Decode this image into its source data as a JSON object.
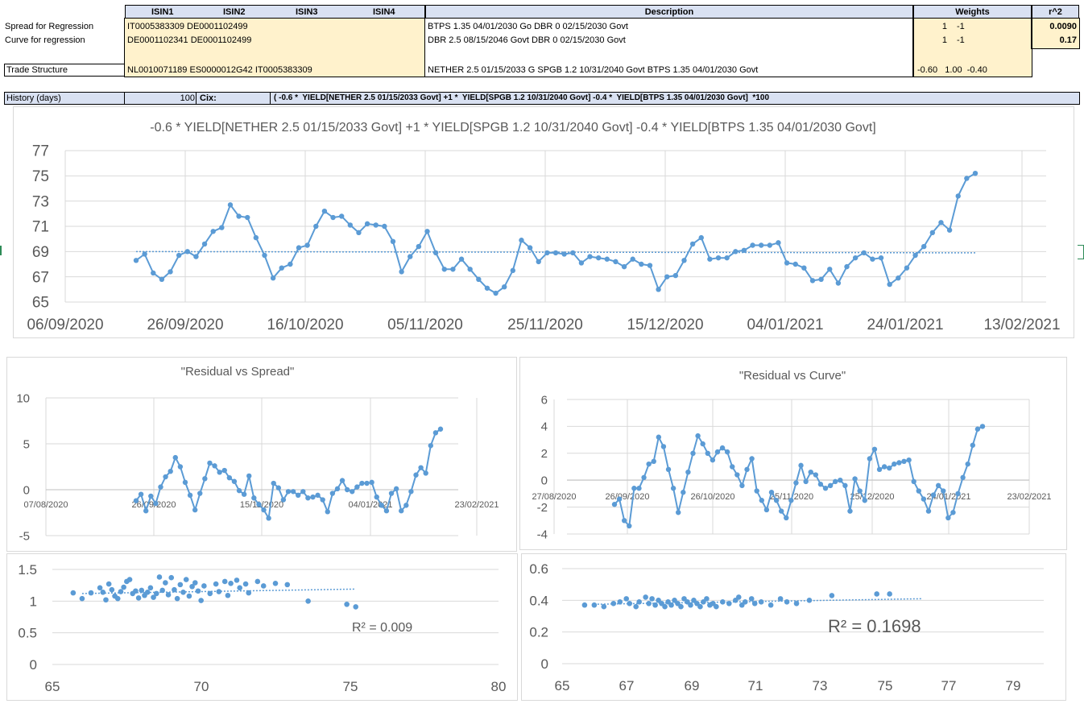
{
  "sheet": {
    "headers": {
      "isin1": "ISIN1",
      "isin2": "ISIN2",
      "isin3": "ISIN3",
      "isin4": "ISIN4",
      "description": "Description",
      "weights": "Weights",
      "r2": "r^2"
    },
    "rows": [
      {
        "label": "Spread for Regression",
        "isins": "IT0005383309   DE0001102499",
        "description": "BTPS 1.35 04/01/2030 Go DBR 0 02/15/2030 Govt",
        "w1": "1",
        "w2": "-1",
        "r2": "0.0090"
      },
      {
        "label": "Curve for regression",
        "isins": "DE0001102341   DE0001102499",
        "description": "DBR 2.5 08/15/2046 Govt DBR 0 02/15/2030 Govt",
        "w1": "1",
        "w2": "-1",
        "r2": "0.17"
      },
      {
        "label": "Trade Structure",
        "isins": "NL0010071189   ES0000012G42   IT0005383309",
        "description": "NETHER 2.5 01/15/2033 G SPGB 1.2 10/31/2040 Govt      BTPS 1.35 04/01/2030 Govt",
        "weights": "-0.60   1.00  -0.40"
      }
    ],
    "history_label": "History (days)",
    "history_value": "100",
    "cix_label": "Cix:",
    "cix_value": "( -0.6 *  YIELD[NETHER 2.5 01/15/2033 Govt] +1 *  YIELD[SPGB 1.2 10/31/2040 Govt] -0.4 *  YIELD[BTPS 1.35 04/01/2030 Govt]  *100"
  },
  "accent_color": "#5b9bd5",
  "chart_data": [
    {
      "type": "line",
      "title": "-0.6 *  YIELD[NETHER 2.5 01/15/2033 Govt] +1 *  YIELD[SPGB 1.2 10/31/2040 Govt] -0.4 *  YIELD[BTPS 1.35 04/01/2030 Govt]",
      "x_ticks": [
        "06/09/2020",
        "26/09/2020",
        "16/10/2020",
        "05/11/2020",
        "25/11/2020",
        "15/12/2020",
        "04/01/2021",
        "24/01/2021",
        "13/02/2021"
      ],
      "y_ticks": [
        "77",
        "75",
        "73",
        "71",
        "69",
        "67",
        "65"
      ],
      "ylim": [
        65,
        77
      ],
      "trendline": [
        69.0,
        68.9
      ],
      "values": [
        68.3,
        68.8,
        67.3,
        66.8,
        67.4,
        68.7,
        69.0,
        68.6,
        69.6,
        70.6,
        70.9,
        72.7,
        71.8,
        71.7,
        70.1,
        68.7,
        66.9,
        67.7,
        68.0,
        69.3,
        69.5,
        71.0,
        72.2,
        71.7,
        71.8,
        71.1,
        70.5,
        71.2,
        71.1,
        71.0,
        69.8,
        67.4,
        68.6,
        69.4,
        70.6,
        68.9,
        67.6,
        67.6,
        68.4,
        67.6,
        66.8,
        66.1,
        65.7,
        66.2,
        67.5,
        69.9,
        69.3,
        68.2,
        68.9,
        68.9,
        68.8,
        68.9,
        68.1,
        68.6,
        68.5,
        68.4,
        68.2,
        67.8,
        68.4,
        68.0,
        67.9,
        66.0,
        67.0,
        67.1,
        68.3,
        69.6,
        70.1,
        68.4,
        68.5,
        68.5,
        69.0,
        69.1,
        69.5,
        69.5,
        69.5,
        69.7,
        68.1,
        68.0,
        67.7,
        66.7,
        66.8,
        67.6,
        66.5,
        67.8,
        68.5,
        68.9,
        68.4,
        68.5,
        66.4,
        66.9,
        67.7,
        68.7,
        69.4,
        70.5,
        71.3,
        70.7,
        73.4,
        74.8,
        75.2
      ]
    },
    {
      "type": "line",
      "title": "\"Residual vs Spread\"",
      "x_ticks": [
        "07/08/2020",
        "26/09/2020",
        "15/11/2020",
        "04/01/2021",
        "23/02/2021"
      ],
      "y_ticks": [
        "10",
        "5",
        "0",
        "-5"
      ],
      "ylim": [
        -5,
        10
      ],
      "values": [
        -1.2,
        -0.5,
        -2.3,
        -0.7,
        -1.5,
        0.3,
        1.4,
        2.0,
        3.5,
        2.5,
        0.8,
        -0.6,
        -2.2,
        -0.4,
        1.2,
        2.9,
        2.6,
        1.9,
        2.1,
        1.3,
        0.9,
        -0.1,
        -0.5,
        1.5,
        -0.9,
        -1.6,
        -2.2,
        -3.1,
        0.7,
        0.2,
        -1.1,
        -0.2,
        -0.2,
        -0.6,
        -0.2,
        -0.9,
        -0.8,
        -0.6,
        -1.1,
        -2.4,
        -0.4,
        0.1,
        1.0,
        0.0,
        -0.2,
        0.3,
        0.7,
        0.7,
        0.8,
        -0.8,
        -1.7,
        -2.3,
        -0.4,
        0.1,
        -2.3,
        -1.7,
        -0.2,
        1.6,
        2.4,
        1.8,
        4.8,
        6.2,
        6.6
      ]
    },
    {
      "type": "line",
      "title": "\"Residual vs Curve\"",
      "x_ticks": [
        "27/08/2020",
        "26/09/2020",
        "26/10/2020",
        "25/11/2020",
        "25/12/2020",
        "24/01/2021",
        "23/02/2021"
      ],
      "y_ticks": [
        "6",
        "4",
        "2",
        "0",
        "-2",
        "-4"
      ],
      "ylim": [
        -4,
        6
      ],
      "values": [
        -1.8,
        -1.4,
        -3.0,
        -3.4,
        -0.6,
        -0.6,
        0.2,
        1.2,
        1.4,
        3.2,
        2.5,
        0.8,
        -0.6,
        -2.4,
        -0.9,
        0.6,
        2.0,
        3.3,
        2.7,
        2.0,
        1.5,
        2.1,
        2.4,
        2.1,
        1.0,
        0.4,
        -0.4,
        0.8,
        1.6,
        -0.8,
        -1.5,
        -2.2,
        -0.9,
        -1.5,
        -2.3,
        -2.8,
        -1.5,
        -0.2,
        1.1,
        -0.1,
        0.6,
        0.4,
        -0.3,
        -0.6,
        -0.4,
        -0.1,
        0.0,
        -0.4,
        -2.3,
        0.1,
        -0.8,
        -1.5,
        1.6,
        2.3,
        0.8,
        1.0,
        0.9,
        1.2,
        1.3,
        1.4,
        1.5,
        -0.1,
        -0.8,
        -1.4,
        -2.3,
        -1.1,
        -0.4,
        -0.8,
        -2.8,
        -2.4,
        -1.0,
        0.2,
        1.2,
        2.6,
        3.8,
        4.0
      ]
    },
    {
      "type": "scatter",
      "xlim": [
        65,
        80
      ],
      "ylim": [
        0,
        1.5
      ],
      "x_ticks": [
        "65",
        "70",
        "75",
        "80"
      ],
      "y_ticks": [
        "1.5",
        "1",
        "0.5",
        "0"
      ],
      "annotation": "R² = 0.009",
      "trendline": {
        "x": [
          66,
          75.2
        ],
        "y": [
          1.12,
          1.19
        ]
      },
      "points": [
        [
          65.7,
          1.13
        ],
        [
          66.0,
          1.04
        ],
        [
          66.3,
          1.13
        ],
        [
          66.6,
          1.21
        ],
        [
          66.7,
          1.14
        ],
        [
          66.8,
          1.02
        ],
        [
          66.9,
          1.27
        ],
        [
          67.0,
          1.18
        ],
        [
          67.1,
          1.08
        ],
        [
          67.2,
          1.04
        ],
        [
          67.3,
          1.15
        ],
        [
          67.4,
          1.22
        ],
        [
          67.5,
          1.31
        ],
        [
          67.6,
          1.34
        ],
        [
          67.7,
          1.12
        ],
        [
          67.8,
          1.16
        ],
        [
          67.9,
          1.05
        ],
        [
          68.0,
          1.17
        ],
        [
          68.1,
          1.09
        ],
        [
          68.2,
          1.14
        ],
        [
          68.3,
          1.21
        ],
        [
          68.4,
          1.06
        ],
        [
          68.5,
          1.12
        ],
        [
          68.6,
          1.38
        ],
        [
          68.7,
          1.17
        ],
        [
          68.8,
          1.29
        ],
        [
          68.9,
          1.1
        ],
        [
          69.0,
          1.37
        ],
        [
          69.1,
          1.18
        ],
        [
          69.2,
          1.04
        ],
        [
          69.3,
          1.26
        ],
        [
          69.4,
          1.14
        ],
        [
          69.5,
          1.34
        ],
        [
          69.6,
          1.08
        ],
        [
          69.7,
          1.23
        ],
        [
          69.8,
          1.29
        ],
        [
          69.9,
          1.16
        ],
        [
          70.0,
          1.01
        ],
        [
          70.1,
          1.24
        ],
        [
          70.3,
          1.12
        ],
        [
          70.5,
          1.27
        ],
        [
          70.6,
          1.15
        ],
        [
          70.8,
          1.31
        ],
        [
          70.9,
          1.09
        ],
        [
          71.0,
          1.28
        ],
        [
          71.2,
          1.33
        ],
        [
          71.3,
          1.21
        ],
        [
          71.5,
          1.27
        ],
        [
          71.6,
          1.13
        ],
        [
          71.9,
          1.31
        ],
        [
          72.1,
          1.24
        ],
        [
          72.5,
          1.28
        ],
        [
          72.9,
          1.26
        ],
        [
          73.6,
          1.0
        ],
        [
          74.9,
          0.95
        ],
        [
          75.2,
          0.91
        ]
      ]
    },
    {
      "type": "scatter",
      "xlim": [
        65,
        80
      ],
      "ylim": [
        0,
        0.6
      ],
      "x_ticks": [
        "65",
        "67",
        "69",
        "71",
        "73",
        "75",
        "77",
        "79"
      ],
      "y_ticks": [
        "0.6",
        "0.4",
        "0.2",
        "0"
      ],
      "annotation": "R² = 0.1698",
      "trendline": {
        "x": [
          66,
          76.2
        ],
        "y": [
          0.375,
          0.41
        ]
      },
      "points": [
        [
          65.7,
          0.37
        ],
        [
          66.0,
          0.37
        ],
        [
          66.3,
          0.36
        ],
        [
          66.6,
          0.38
        ],
        [
          66.8,
          0.39
        ],
        [
          67.0,
          0.41
        ],
        [
          67.1,
          0.38
        ],
        [
          67.3,
          0.36
        ],
        [
          67.4,
          0.39
        ],
        [
          67.6,
          0.42
        ],
        [
          67.7,
          0.38
        ],
        [
          67.8,
          0.41
        ],
        [
          67.9,
          0.37
        ],
        [
          68.0,
          0.4
        ],
        [
          68.1,
          0.38
        ],
        [
          68.2,
          0.36
        ],
        [
          68.3,
          0.39
        ],
        [
          68.4,
          0.37
        ],
        [
          68.5,
          0.4
        ],
        [
          68.6,
          0.38
        ],
        [
          68.7,
          0.36
        ],
        [
          68.8,
          0.41
        ],
        [
          68.9,
          0.39
        ],
        [
          69.0,
          0.37
        ],
        [
          69.1,
          0.4
        ],
        [
          69.2,
          0.38
        ],
        [
          69.3,
          0.36
        ],
        [
          69.4,
          0.39
        ],
        [
          69.5,
          0.41
        ],
        [
          69.6,
          0.37
        ],
        [
          69.7,
          0.38
        ],
        [
          69.8,
          0.36
        ],
        [
          70.0,
          0.39
        ],
        [
          70.2,
          0.38
        ],
        [
          70.4,
          0.4
        ],
        [
          70.5,
          0.42
        ],
        [
          70.6,
          0.37
        ],
        [
          70.7,
          0.39
        ],
        [
          70.9,
          0.41
        ],
        [
          71.0,
          0.38
        ],
        [
          71.2,
          0.39
        ],
        [
          71.5,
          0.37
        ],
        [
          71.8,
          0.41
        ],
        [
          72.0,
          0.39
        ],
        [
          72.3,
          0.38
        ],
        [
          72.7,
          0.4
        ],
        [
          73.4,
          0.43
        ],
        [
          74.8,
          0.44
        ],
        [
          75.2,
          0.44
        ]
      ]
    }
  ]
}
